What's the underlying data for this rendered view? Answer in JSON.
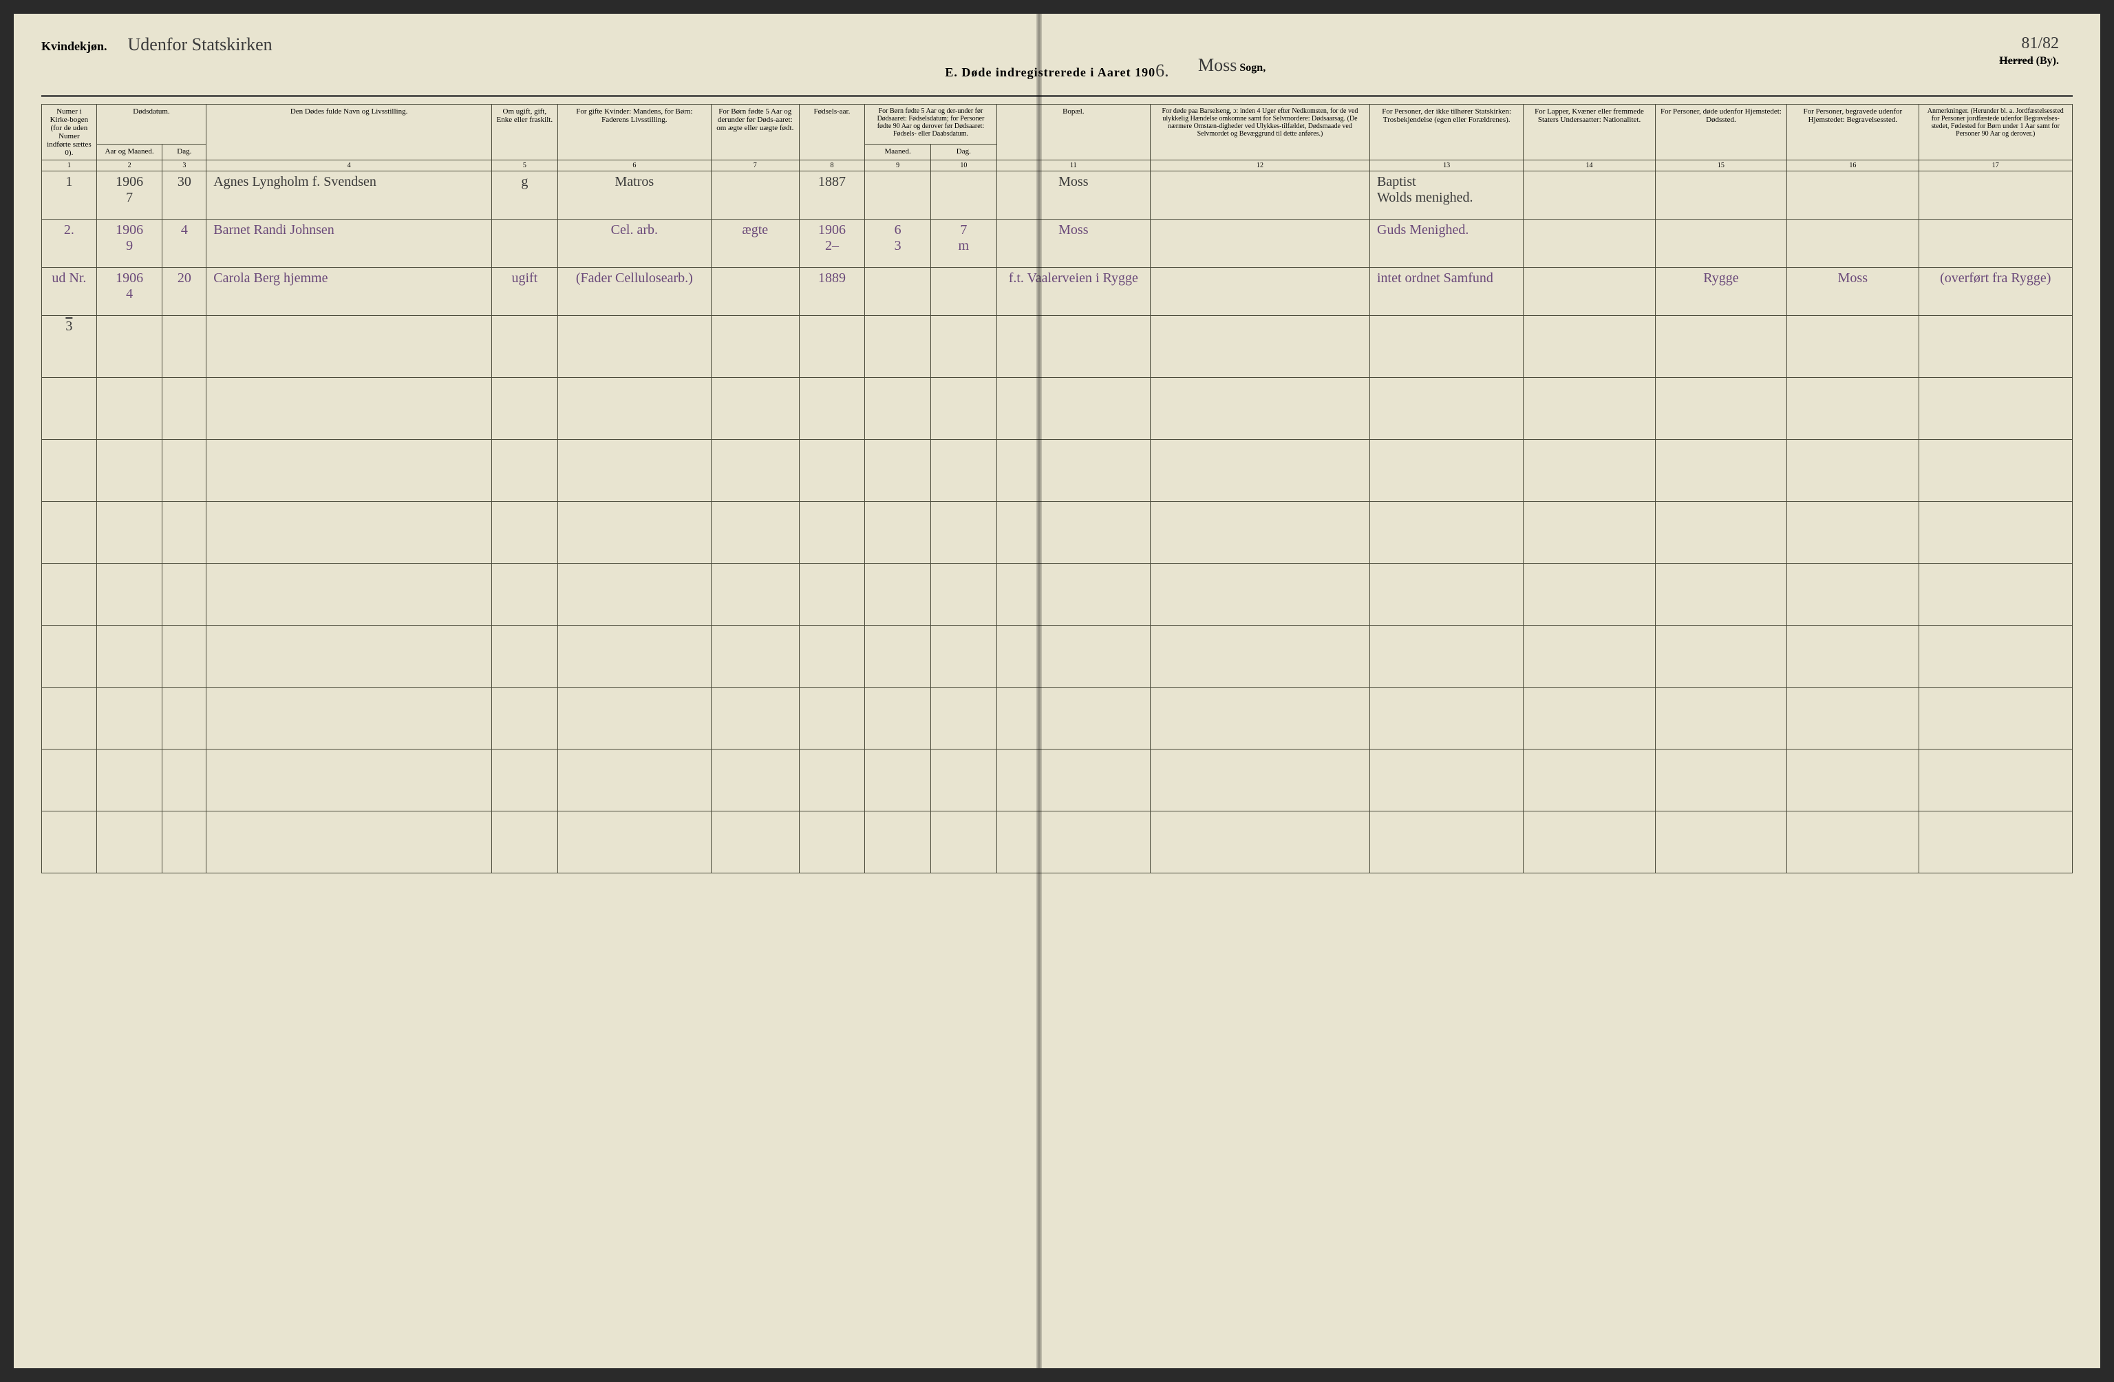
{
  "header": {
    "gender": "Kvindekjøn.",
    "note_cursive": "Udenfor Statskirken",
    "title_prefix": "E.  Døde indregistrerede i Aaret 190",
    "title_year_hand": "6.",
    "sogn_hand": "Moss",
    "sogn_label": "Sogn,",
    "herred_strike": "Herred",
    "herred_suffix": "(By).",
    "page_number": "81/82"
  },
  "columns": {
    "c1": "Numer i Kirke-bogen (for de uden Numer indførte sættes 0).",
    "c2": "Dødsdatum.",
    "c2a": "Aar og Maaned.",
    "c2b": "Dag.",
    "c4": "Den Dødes fulde Navn og Livsstilling.",
    "c5": "Om ugift, gift, Enke eller fraskilt.",
    "c6": "For gifte Kvinder: Mandens, for Børn: Faderens Livsstilling.",
    "c7": "For Børn fødte 5 Aar og derunder før Døds-aaret: om ægte eller uægte født.",
    "c8": "Fødsels-aar.",
    "c9_10": "For Børn fødte 5 Aar og der-under før Dødsaaret: Fødselsdatum; for Personer fødte 90 Aar og derover før Dødsaaret: Fødsels- eller Daabsdatum.",
    "c9": "Maaned.",
    "c10": "Dag.",
    "c11": "Bopæl.",
    "c12": "For døde paa Barselseng, ɔ: inden 4 Uger efter Nedkomsten, for de ved ulykkelig Hændelse omkomne samt for Selvmordere: Dødsaarsag. (De nærmere Omstæn-digheder ved Ulykkes-tilfældet, Dødsmaade ved Selvmordet og Bevæggrund til dette anføres.)",
    "c13": "For Personer, der ikke tilhører Statskirken: Trosbekjendelse (egen eller Forældrenes).",
    "c14": "For Lapper, Kvæner eller fremmede Staters Undersaatter: Nationalitet.",
    "c15": "For Personer, døde udenfor Hjemstedet: Dødssted.",
    "c16": "For Personer, begravede udenfor Hjemstedet: Begravelsessted.",
    "c17": "Anmerkninger. (Herunder bl. a. Jordfæstelsessted for Personer jordfæstede udenfor Begravelses-stedet, Fødested for Børn under 1 Aar samt for Personer 90 Aar og derover.)"
  },
  "colnums": [
    "1",
    "2",
    "3",
    "4",
    "5",
    "6",
    "7",
    "8",
    "9",
    "10",
    "11",
    "12",
    "13",
    "14",
    "15",
    "16",
    "17"
  ],
  "rows": [
    {
      "num": "1",
      "year_mo": "1906\n7",
      "day": "30",
      "name": "Agnes Lyngholm f. Svendsen",
      "civil": "g",
      "spouse": "Matros",
      "legit": "",
      "birth_yr": "1887",
      "bm": "",
      "bd": "",
      "bopael": "Moss",
      "cause": "",
      "faith": "Baptist\nWolds menighed.",
      "nat": "",
      "dsted": "",
      "bsted": "",
      "anm": "",
      "color": "dark"
    },
    {
      "num": "2.",
      "year_mo": "1906\n9",
      "day": "4",
      "name": "Barnet Randi Johnsen",
      "civil": "",
      "spouse": "Cel. arb.",
      "legit": "ægte",
      "birth_yr": "1906\n2–",
      "bm": "6\n3",
      "bd": "7\nm",
      "bopael": "Moss",
      "cause": "",
      "faith": "Guds Menighed.",
      "nat": "",
      "dsted": "",
      "bsted": "",
      "anm": "",
      "color": "purple"
    },
    {
      "num": "ud Nr.",
      "year_mo": "1906\n4",
      "day": "20",
      "name": "Carola Berg hjemme",
      "civil": "ugift",
      "spouse": "(Fader Cellulosearb.)",
      "legit": "",
      "birth_yr": "1889",
      "bm": "",
      "bd": "",
      "bopael": "f.t. Vaalerveien i Rygge",
      "cause": "",
      "faith": "intet ordnet Samfund",
      "nat": "",
      "dsted": "Rygge",
      "bsted": "Moss",
      "anm": "(overført fra Rygge)",
      "color": "purple"
    }
  ],
  "tally": "3",
  "empty_rows": 8,
  "colors": {
    "paper": "#e8e4d0",
    "ink_dark": "#3a3a3a",
    "ink_purple": "#6b4a7a",
    "rule": "#4a4a3a"
  }
}
